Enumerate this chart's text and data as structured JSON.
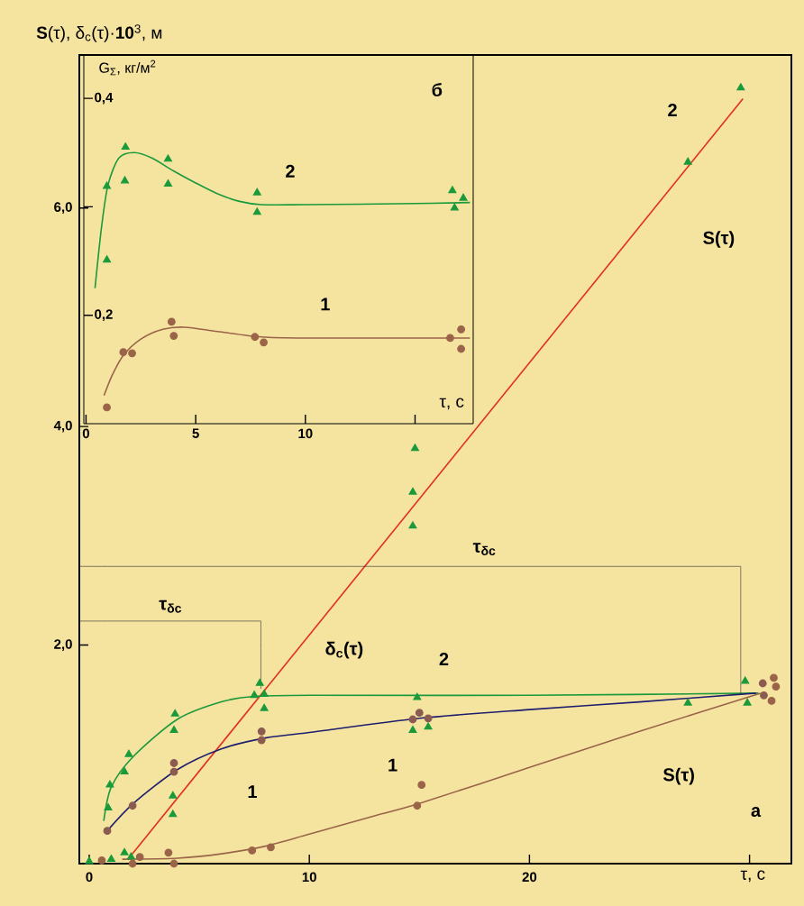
{
  "chart_data": [
    {
      "type": "line",
      "ylabel": "**S**(τ), δ$_{c}$(τ)·**10**$^{3}$, м",
      "xlabel": "τ, с",
      "xlim": [
        -0.45,
        31.9
      ],
      "ylim": [
        0,
        7.4
      ],
      "xticks": [
        0,
        10,
        20,
        {
          "value": 30,
          "label": null
        }
      ],
      "yticks": [
        {
          "value": 2,
          "label": "2,0"
        },
        {
          "value": 4,
          "label": "4,0"
        },
        {
          "value": 6,
          "label": "6,0"
        }
      ],
      "series": [
        {
          "color": "#e0301e",
          "x": [
            1.8,
            29.7
          ],
          "values": [
            0.05,
            7.0
          ]
        },
        {
          "type": "scatter",
          "marker": "triangle",
          "color": "#1a9a3a",
          "x": [
            0,
            1.0,
            1.6,
            1.9,
            3.8,
            3.8,
            7.75,
            7.95,
            14.8,
            14.7,
            14.7,
            27.2,
            29.6
          ],
          "values": [
            0.02,
            0.04,
            0.1,
            0.06,
            0.62,
            0.45,
            1.65,
            1.42,
            3.8,
            3.4,
            3.09,
            6.42,
            7.1
          ]
        },
        {
          "color": "#1a9a3a",
          "x": [
            0.66,
            1,
            2,
            4,
            6,
            7.5,
            10,
            20,
            30.4
          ],
          "values": [
            0.39,
            0.7,
            0.98,
            1.32,
            1.48,
            1.53,
            1.54,
            1.54,
            1.56
          ]
        },
        {
          "type": "scatter",
          "marker": "triangle",
          "color": "#1a9a3a",
          "x": [
            0.86,
            0.94,
            1.6,
            1.8,
            3.9,
            3.85,
            7.5,
            7.95,
            14.9,
            14.7,
            15.4,
            27.2,
            29.8,
            29.9
          ],
          "values": [
            0.51,
            0.72,
            0.84,
            1.0,
            1.37,
            1.22,
            1.54,
            1.55,
            1.52,
            1.22,
            1.25,
            1.47,
            1.67,
            1.47
          ]
        },
        {
          "color": "#1e1e6e",
          "x": [
            0.82,
            2,
            4,
            6,
            8,
            10,
            15,
            20,
            25,
            30.3
          ],
          "values": [
            0.3,
            0.55,
            0.86,
            1.05,
            1.15,
            1.2,
            1.33,
            1.41,
            1.48,
            1.56
          ]
        },
        {
          "type": "scatter",
          "marker": "circle",
          "color": "#8b5a50",
          "x": [
            0.82,
            1.97,
            3.85,
            3.85,
            7.83,
            7.83,
            14.7,
            15.0,
            15.4,
            30.6,
            30.65
          ],
          "values": [
            0.3,
            0.53,
            0.92,
            0.84,
            1.21,
            1.13,
            1.32,
            1.38,
            1.33,
            1.65,
            1.54
          ]
        },
        {
          "color": "#9a6448",
          "x": [
            1.5,
            4,
            6,
            8,
            10,
            13,
            15,
            20,
            25,
            30.5
          ],
          "values": [
            0.04,
            0.05,
            0.09,
            0.16,
            0.27,
            0.44,
            0.55,
            0.88,
            1.21,
            1.56
          ]
        },
        {
          "type": "scatter",
          "marker": "circle",
          "color": "#9a6448",
          "x": [
            0.57,
            1.97,
            2.3,
            3.6,
            3.85,
            7.4,
            8.25,
            15.1,
            14.9,
            31.1,
            31.2,
            31.0
          ],
          "values": [
            0.03,
            0,
            0.06,
            0.1,
            0,
            0.12,
            0.15,
            0.72,
            0.53,
            1.7,
            1.62,
            1.49
          ]
        },
        {
          "color": "#303030",
          "x": [
            -0.45,
            7.8
          ],
          "values": [
            2.22,
            2.22
          ]
        },
        {
          "color": "#303030",
          "x": [
            7.8,
            7.8
          ],
          "values": [
            2.22,
            1.6
          ]
        },
        {
          "color": "#303030",
          "x": [
            -0.45,
            29.6
          ],
          "values": [
            2.72,
            2.72
          ]
        },
        {
          "color": "#303030",
          "x": [
            29.6,
            29.6
          ],
          "values": [
            2.72,
            1.55
          ]
        }
      ],
      "annotations": [
        "2",
        "S(τ)",
        "τ$_{δc}$",
        "τ$_{δc}$",
        "δ$_{c}$(τ)",
        "2",
        "1",
        "1",
        "S(τ)",
        "а"
      ]
    },
    {
      "type": "line",
      "ylabel": "G$_{Σ}$, кг/м$^{2}$",
      "xlabel": "τ, с",
      "xlim": [
        -0.1,
        17.65
      ],
      "ylim": [
        0.1,
        0.44
      ],
      "xticks": [
        0,
        5,
        10,
        {
          "value": 15,
          "label": null
        }
      ],
      "yticks": [
        {
          "value": 0.2,
          "label": "0,2"
        },
        {
          "value": 0.3,
          "label": null
        },
        {
          "value": 0.4,
          "label": "0,4"
        }
      ],
      "series": [
        {
          "type": "scatter",
          "marker": "triangle",
          "color": "#1a9a3a",
          "x": [
            0.95,
            0.95,
            1.8,
            1.77,
            3.74,
            3.74,
            7.8,
            7.8,
            16.7,
            17.2,
            16.8
          ],
          "values": [
            0.251,
            0.319,
            0.355,
            0.324,
            0.344,
            0.321,
            0.313,
            0.295,
            0.315,
            0.308,
            0.299
          ]
        },
        {
          "color": "#1a9a3a",
          "x": [
            0.41,
            0.7,
            1.0,
            1.5,
            2.2,
            3,
            4,
            5,
            6,
            7,
            8,
            10,
            15,
            17.5
          ],
          "values": [
            0.225,
            0.28,
            0.32,
            0.345,
            0.35,
            0.345,
            0.333,
            0.322,
            0.312,
            0.305,
            0.302,
            0.302,
            0.303,
            0.304
          ]
        },
        {
          "type": "scatter",
          "marker": "circle",
          "color": "#9a6448",
          "x": [
            0.95,
            1.7,
            2.1,
            3.9,
            4.0,
            7.7,
            8.1,
            16.6,
            17.1,
            17.1
          ],
          "values": [
            0.115,
            0.166,
            0.165,
            0.194,
            0.181,
            0.18,
            0.175,
            0.179,
            0.187,
            0.169
          ]
        },
        {
          "color": "#9a6448",
          "x": [
            0.82,
            1.2,
            1.7,
            2.5,
            3.5,
            4.5,
            6,
            8,
            10,
            17.5
          ],
          "values": [
            0.126,
            0.145,
            0.163,
            0.178,
            0.187,
            0.189,
            0.185,
            0.18,
            0.179,
            0.179
          ]
        }
      ],
      "annotations": [
        "2",
        "1",
        "б"
      ]
    }
  ]
}
